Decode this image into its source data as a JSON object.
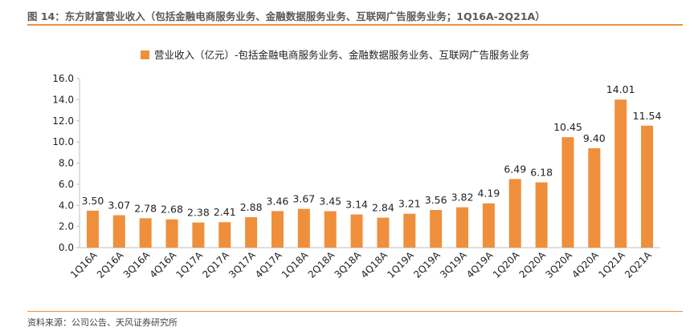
{
  "header": {
    "title": "图 14：东方财富营业收入（包括金融电商服务业务、金融数据服务业务、互联网广告服务业务；1Q16A-2Q21A）"
  },
  "footer": {
    "source": "资料来源：公司公告、天风证券研究所"
  },
  "colors": {
    "bar": "#ef8f3c",
    "rule": "#ef8f3c",
    "axis": "#bfbfbf"
  },
  "chart_data": {
    "type": "bar",
    "categories": [
      "1Q16A",
      "2Q16A",
      "3Q16A",
      "4Q16A",
      "1Q17A",
      "2Q17A",
      "3Q17A",
      "4Q17A",
      "1Q18A",
      "2Q18A",
      "3Q18A",
      "4Q18A",
      "1Q19A",
      "2Q19A",
      "3Q19A",
      "4Q19A",
      "1Q20A",
      "2Q20A",
      "3Q20A",
      "4Q20A",
      "1Q21A",
      "2Q21A"
    ],
    "series": [
      {
        "name": "营业收入（亿元）-包括金融电商服务业务、金融数据服务业务、互联网广告服务业务",
        "values": [
          3.5,
          3.07,
          2.78,
          2.68,
          2.38,
          2.41,
          2.88,
          3.46,
          3.67,
          3.45,
          3.14,
          2.84,
          3.21,
          3.56,
          3.82,
          4.19,
          6.49,
          6.18,
          10.45,
          9.4,
          14.01,
          11.54
        ],
        "labels": [
          "3.50",
          "3.07",
          "2.78",
          "2.68",
          "2.38",
          "2.41",
          "2.88",
          "3.46",
          "3.67",
          "3.45",
          "3.14",
          "2.84",
          "3.21",
          "3.56",
          "3.82",
          "4.19",
          "6.49",
          "6.18",
          "10.45",
          "9.40",
          "14.01",
          "11.54"
        ]
      }
    ],
    "ylim": [
      0,
      16
    ],
    "yticks": [
      "0.0",
      "2.0",
      "4.0",
      "6.0",
      "8.0",
      "10.0",
      "12.0",
      "14.0",
      "16.0"
    ],
    "grid": false,
    "legend_position": "top"
  }
}
